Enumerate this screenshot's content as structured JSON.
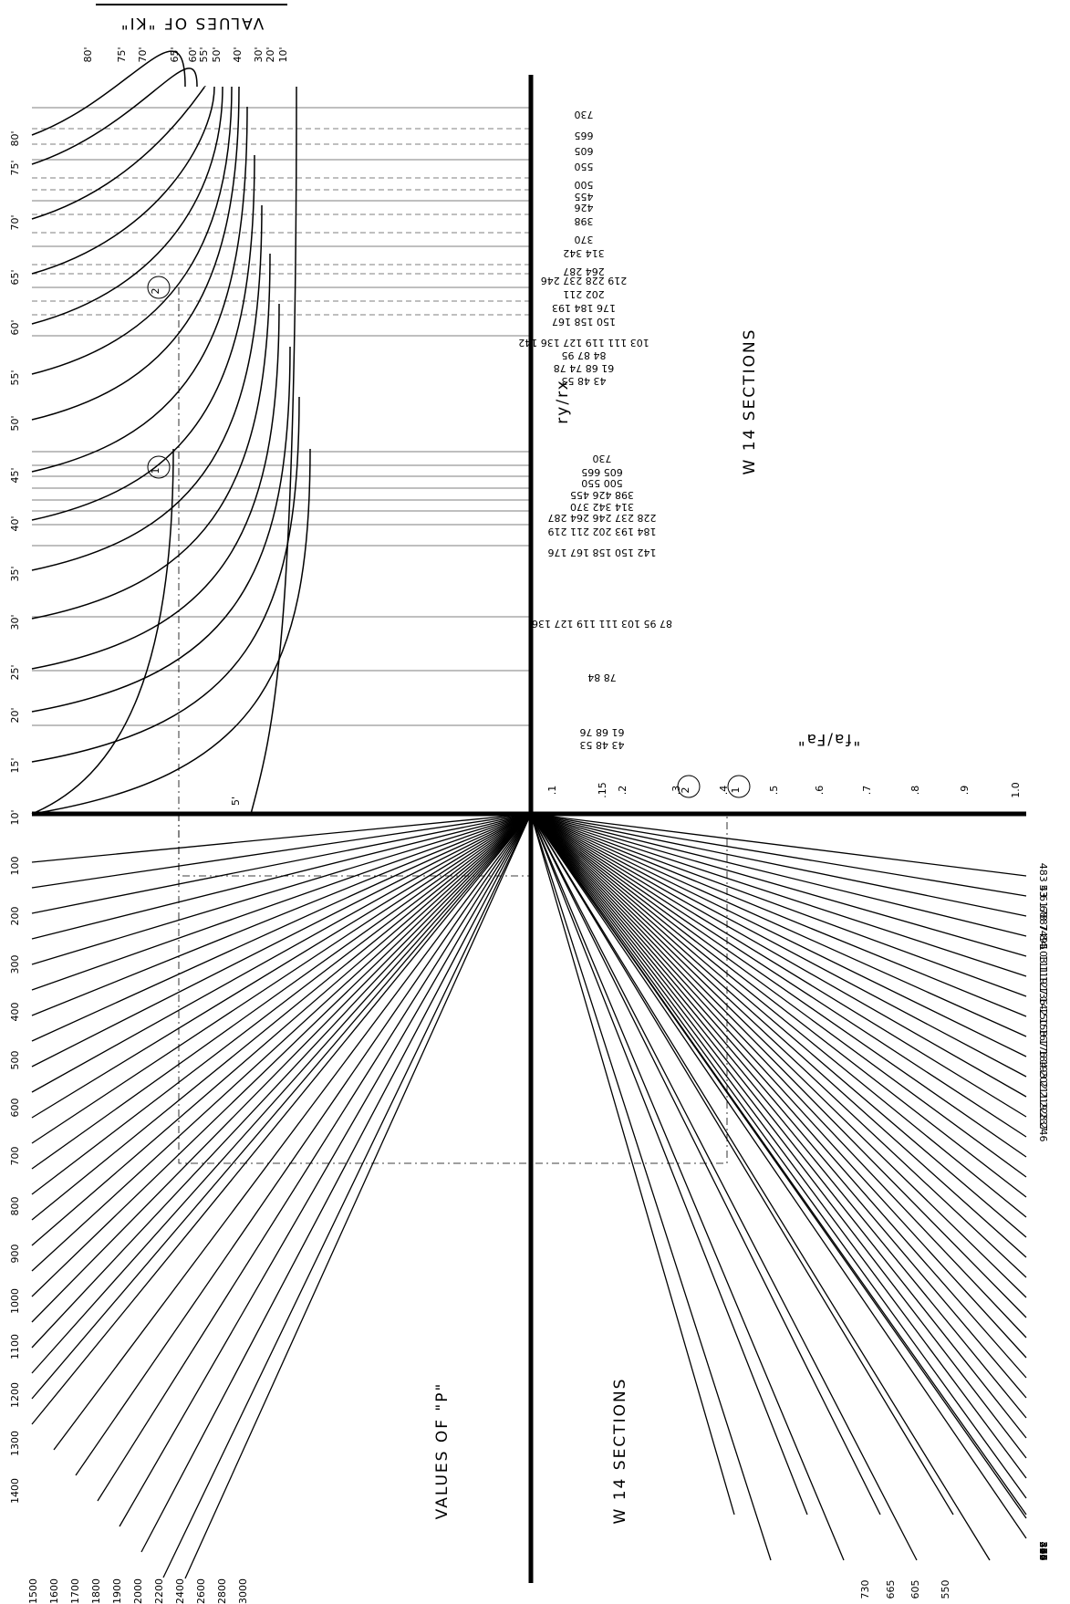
{
  "titles": {
    "ki_values": "VALUES OF \"KI\"",
    "w14_sections_top": "W 14  SECTIONS",
    "ry_rx": "ry/rx",
    "fa_Fa": "\"fa/Fa\"",
    "p_values": "VALUES OF \"P\"",
    "w14_sections_bottom": "W 14 SECTIONS"
  },
  "ki_scale": [
    "80'",
    "75'",
    "70'",
    "65'",
    "60'",
    "55'",
    "50'",
    "45'",
    "40'",
    "35'",
    "30'",
    "25'",
    "20'",
    "15'",
    "10'",
    "5'"
  ],
  "ki_top_labels": [
    "80'",
    "75'",
    "70'",
    "65'",
    "60'",
    "55'",
    "50'",
    "40'",
    "30'",
    "20'",
    "10'"
  ],
  "p_scale": [
    "100",
    "200",
    "300",
    "400",
    "500",
    "600",
    "700",
    "800",
    "900",
    "1000",
    "1100",
    "1200",
    "1300",
    "1400",
    "1500",
    "1600",
    "1700",
    "1800",
    "1900",
    "2000",
    "2200",
    "2400",
    "2600",
    "2800",
    "3000"
  ],
  "fa_scale": [
    ".1",
    ".15",
    ".2",
    ".3",
    ".4",
    ".5",
    ".6",
    ".7",
    ".8",
    ".9",
    "1.0"
  ],
  "marker_labels": [
    "1",
    "2"
  ],
  "ry_rx_group_upper": [
    "730",
    "665",
    "605",
    "550",
    "500",
    "455",
    "426",
    "398",
    "370",
    "314 342",
    "264 287",
    "219 228 237 246",
    "202 211",
    "176 184 193",
    "150 158 167",
    "103 111 119 127 136 142",
    "84 87 95",
    "61 68 74 78",
    "43 48 53"
  ],
  "ry_rx_group_lower": [
    "730",
    "605 665",
    "500 550",
    "398 426 455",
    "314 342 370",
    "228 237 246 264 287",
    "184 193 202 211 219",
    "142 150 158 167 176",
    "87 95 103 111 119 127 136",
    "78 84",
    "61 68 76",
    "43 48 53"
  ],
  "w14_bottom_right": [
    "483 43",
    "53",
    "61",
    "68",
    "78 74",
    "87 84",
    "95",
    "103",
    "111",
    "119",
    "127",
    "136",
    "142",
    "150",
    "158",
    "167",
    "176",
    "184",
    "193",
    "202",
    "211",
    "219",
    "228",
    "237",
    "246",
    "264",
    "287",
    "314",
    "342",
    "370",
    "398",
    "426",
    "455",
    "500"
  ],
  "w14_bottom_axis": [
    "730",
    "665",
    "605",
    "550"
  ]
}
